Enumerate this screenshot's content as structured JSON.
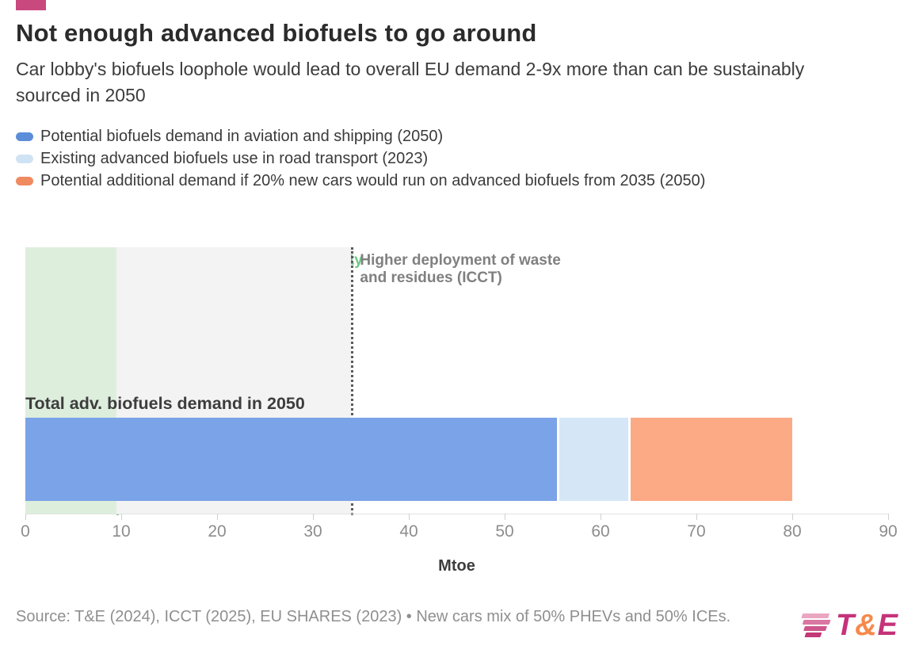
{
  "brand": {
    "accent_color": "#c9487e",
    "logo": {
      "t": "T",
      "amp": "&",
      "e": "E",
      "t_color": "#c5337a",
      "amp_color": "#f6894c",
      "e_color": "#c5337a",
      "stripe_colors": [
        "#eba6c2",
        "#d977a3",
        "#cd568b",
        "#c33877"
      ]
    }
  },
  "header": {
    "title": "Not enough advanced biofuels to go around",
    "subtitle": "Car lobby's biofuels loophole would lead to overall EU demand 2-9x more than can be sustainably sourced in 2050"
  },
  "legend": [
    {
      "label": "Potential biofuels demand in aviation and shipping (2050)",
      "color": "#5b8dd9"
    },
    {
      "label": "Existing advanced biofuels use in road transport (2023)",
      "color": "#cfe3f4"
    },
    {
      "label": "Potential additional demand if 20% new cars would run on advanced biofuels from 2035 (2050)",
      "color": "#ef8a61"
    }
  ],
  "chart_data": {
    "type": "bar",
    "orientation": "horizontal",
    "stacked": true,
    "bar_label": "Total adv. biofuels demand in 2050",
    "xlabel": "Mtoe",
    "xlim": [
      0,
      90
    ],
    "x_ticks": [
      0,
      10,
      20,
      30,
      40,
      50,
      60,
      70,
      80,
      90
    ],
    "series": [
      {
        "name": "Potential biofuels demand in aviation and shipping (2050)",
        "value": 55.5,
        "color": "#7ba3e8"
      },
      {
        "name": "Existing advanced biofuels use in road transport (2023)",
        "value": 7.5,
        "color": "#d5e7f6"
      },
      {
        "name": "Potential additional demand if 20% new cars would run on advanced biofuels from 2035 (2050)",
        "value": 17,
        "color": "#fca985"
      }
    ],
    "total": 80,
    "reference_bands": [
      {
        "label": "EU advanced biofuels availability with strict sustainability safeguards (T&E)",
        "from": 0,
        "to": 9.5,
        "fill": "#ddeedd",
        "line_style": "dotted-green",
        "text_color": "#6cc884",
        "text_width": 300
      },
      {
        "label": "Higher deployment of waste and residues (ICCT)",
        "from": 9.5,
        "to": 34,
        "fill": "#f3f3f3",
        "line_style": "dotted-dark",
        "text_color": "#808080",
        "text_width": 262
      }
    ],
    "grid": false,
    "legend_position": "top-left"
  },
  "footer": {
    "source": "Source: T&E (2024), ICCT (2025), EU SHARES (2023) • New cars mix of 50% PHEVs and 50% ICEs."
  }
}
